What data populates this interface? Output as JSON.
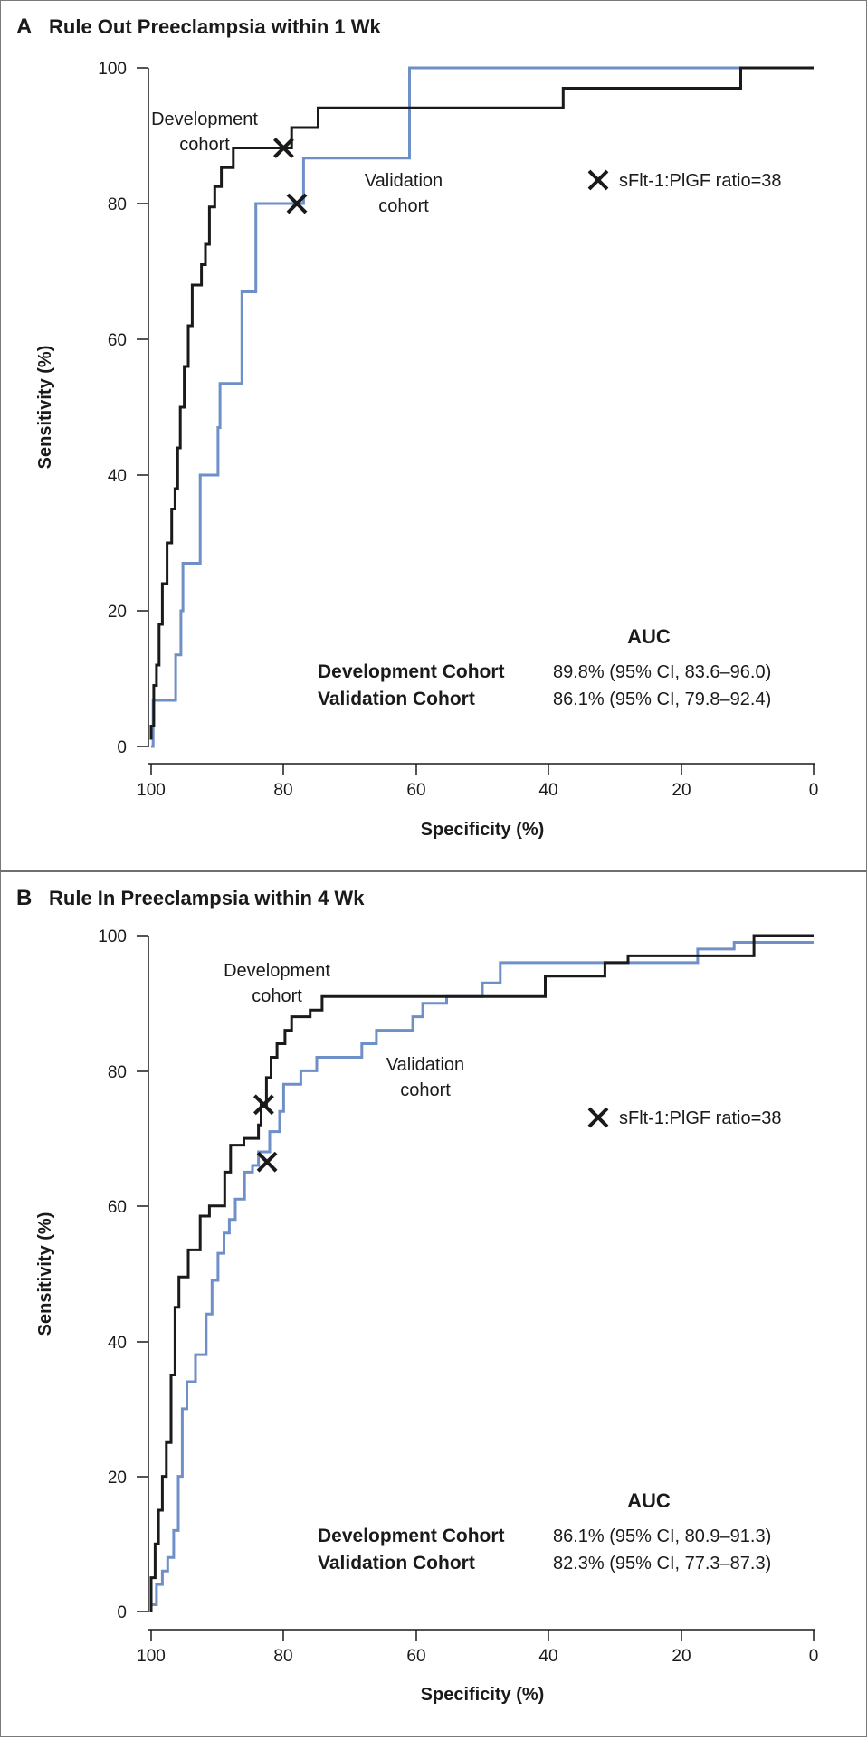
{
  "chart_data": [
    {
      "type": "line",
      "panel_letter": "A",
      "title": "Rule Out Preeclampsia within 1 Wk",
      "xlabel": "Specificity (%)",
      "ylabel": "Sensitivity (%)",
      "xlim": [
        100,
        0
      ],
      "ylim": [
        0,
        100
      ],
      "xticks": [
        100,
        80,
        60,
        40,
        20,
        0
      ],
      "yticks": [
        0,
        20,
        40,
        60,
        80,
        100
      ],
      "annotations": {
        "development": [
          "Development",
          "cohort"
        ],
        "validation": [
          "Validation",
          "cohort"
        ]
      },
      "legend_label": "sFlt-1:PlGF ratio=38",
      "auc": {
        "header": "AUC",
        "rows": [
          {
            "name": "Development Cohort",
            "value": "89.8% (95% CI, 83.6–96.0)"
          },
          {
            "name": "Validation Cohort",
            "value": "86.1% (95% CI, 79.8–92.4)"
          }
        ]
      },
      "markers": [
        {
          "series": "Development cohort",
          "specificity": 80,
          "sensitivity": 88.2
        },
        {
          "series": "Validation cohort",
          "specificity": 78,
          "sensitivity": 80
        }
      ],
      "series": [
        {
          "name": "Development cohort",
          "color": "#1a1a1a",
          "points": [
            [
              100,
              1
            ],
            [
              100,
              3
            ],
            [
              99.6,
              3
            ],
            [
              99.6,
              9
            ],
            [
              99.2,
              9
            ],
            [
              99.2,
              12
            ],
            [
              98.8,
              12
            ],
            [
              98.8,
              18
            ],
            [
              98.3,
              18
            ],
            [
              98.3,
              24
            ],
            [
              97.6,
              24
            ],
            [
              97.6,
              30
            ],
            [
              96.9,
              30
            ],
            [
              96.9,
              35
            ],
            [
              96.4,
              35
            ],
            [
              96.4,
              38
            ],
            [
              96,
              38
            ],
            [
              96,
              44
            ],
            [
              95.6,
              44
            ],
            [
              95.6,
              50
            ],
            [
              95,
              50
            ],
            [
              95,
              56
            ],
            [
              94.4,
              56
            ],
            [
              94.4,
              62
            ],
            [
              93.8,
              62
            ],
            [
              93.8,
              68
            ],
            [
              92.4,
              68
            ],
            [
              92.4,
              71
            ],
            [
              91.8,
              71
            ],
            [
              91.8,
              74
            ],
            [
              91.2,
              74
            ],
            [
              91.2,
              79.5
            ],
            [
              90.4,
              79.5
            ],
            [
              90.4,
              82.5
            ],
            [
              89.4,
              82.5
            ],
            [
              89.4,
              85.3
            ],
            [
              87.6,
              85.3
            ],
            [
              87.6,
              88.2
            ],
            [
              80,
              88.2
            ],
            [
              80,
              88.2
            ],
            [
              78.8,
              88.2
            ],
            [
              78.8,
              91.2
            ],
            [
              74.8,
              91.2
            ],
            [
              74.8,
              94.1
            ],
            [
              37.8,
              94.1
            ],
            [
              37.8,
              97
            ],
            [
              11,
              97
            ],
            [
              11,
              100
            ],
            [
              0,
              100
            ]
          ]
        },
        {
          "name": "Validation cohort",
          "color": "#6f8fc7",
          "points": [
            [
              100,
              0
            ],
            [
              100,
              0
            ],
            [
              99.7,
              0
            ],
            [
              99.7,
              6.8
            ],
            [
              96.3,
              6.8
            ],
            [
              96.3,
              13.5
            ],
            [
              95.5,
              13.5
            ],
            [
              95.5,
              20
            ],
            [
              95.2,
              20
            ],
            [
              95.2,
              27
            ],
            [
              92.6,
              27
            ],
            [
              92.6,
              40
            ],
            [
              89.9,
              40
            ],
            [
              89.9,
              47
            ],
            [
              89.6,
              47
            ],
            [
              89.6,
              53.5
            ],
            [
              86.3,
              53.5
            ],
            [
              86.3,
              67
            ],
            [
              84.2,
              67
            ],
            [
              84.2,
              80
            ],
            [
              77,
              80
            ],
            [
              77,
              86.7
            ],
            [
              61,
              86.7
            ],
            [
              61,
              100
            ],
            [
              0,
              100
            ]
          ]
        }
      ]
    },
    {
      "type": "line",
      "panel_letter": "B",
      "title": "Rule In Preeclampsia within 4 Wk",
      "xlabel": "Specificity (%)",
      "ylabel": "Sensitivity (%)",
      "xlim": [
        100,
        0
      ],
      "ylim": [
        0,
        100
      ],
      "xticks": [
        100,
        80,
        60,
        40,
        20,
        0
      ],
      "yticks": [
        0,
        20,
        40,
        60,
        80,
        100
      ],
      "annotations": {
        "development": [
          "Development",
          "cohort"
        ],
        "validation": [
          "Validation",
          "cohort"
        ]
      },
      "legend_label": "sFlt-1:PlGF ratio=38",
      "auc": {
        "header": "AUC",
        "rows": [
          {
            "name": "Development Cohort",
            "value": "86.1% (95% CI, 80.9–91.3)"
          },
          {
            "name": "Validation Cohort",
            "value": "82.3% (95% CI, 77.3–87.3)"
          }
        ]
      },
      "markers": [
        {
          "series": "Development cohort",
          "specificity": 83,
          "sensitivity": 75
        },
        {
          "series": "Validation cohort",
          "specificity": 82.5,
          "sensitivity": 66.5
        }
      ],
      "series": [
        {
          "name": "Development cohort",
          "color": "#1a1a1a",
          "points": [
            [
              100,
              0
            ],
            [
              100,
              5
            ],
            [
              99.4,
              5
            ],
            [
              99.4,
              10
            ],
            [
              98.9,
              10
            ],
            [
              98.9,
              15
            ],
            [
              98.3,
              15
            ],
            [
              98.3,
              20
            ],
            [
              97.7,
              20
            ],
            [
              97.7,
              25
            ],
            [
              97,
              25
            ],
            [
              97,
              35
            ],
            [
              96.4,
              35
            ],
            [
              96.4,
              45
            ],
            [
              95.8,
              45
            ],
            [
              95.8,
              49.5
            ],
            [
              94.4,
              49.5
            ],
            [
              94.4,
              53.5
            ],
            [
              92.6,
              53.5
            ],
            [
              92.6,
              58.5
            ],
            [
              91.2,
              58.5
            ],
            [
              91.2,
              60
            ],
            [
              88.9,
              60
            ],
            [
              88.9,
              65
            ],
            [
              88,
              65
            ],
            [
              88,
              69
            ],
            [
              86,
              69
            ],
            [
              86,
              70
            ],
            [
              83.8,
              70
            ],
            [
              83.8,
              72
            ],
            [
              83.4,
              72
            ],
            [
              83.4,
              75
            ],
            [
              82.6,
              75
            ],
            [
              82.6,
              79
            ],
            [
              81.9,
              79
            ],
            [
              81.9,
              82
            ],
            [
              81,
              82
            ],
            [
              81,
              84
            ],
            [
              79.8,
              84
            ],
            [
              79.8,
              86
            ],
            [
              78.8,
              86
            ],
            [
              78.8,
              88
            ],
            [
              76,
              88
            ],
            [
              76,
              89
            ],
            [
              74.2,
              89
            ],
            [
              74.2,
              91
            ],
            [
              40.5,
              91
            ],
            [
              40.5,
              94
            ],
            [
              31.5,
              94
            ],
            [
              31.5,
              96
            ],
            [
              28,
              96
            ],
            [
              28,
              97
            ],
            [
              9,
              97
            ],
            [
              9,
              100
            ],
            [
              0,
              100
            ]
          ]
        },
        {
          "name": "Validation cohort",
          "color": "#6f8fc7",
          "points": [
            [
              100,
              0
            ],
            [
              100,
              1
            ],
            [
              99.2,
              1
            ],
            [
              99.2,
              4
            ],
            [
              98.3,
              4
            ],
            [
              98.3,
              6
            ],
            [
              97.5,
              6
            ],
            [
              97.5,
              8
            ],
            [
              96.6,
              8
            ],
            [
              96.6,
              12
            ],
            [
              95.9,
              12
            ],
            [
              95.9,
              20
            ],
            [
              95.3,
              20
            ],
            [
              95.3,
              30
            ],
            [
              94.6,
              30
            ],
            [
              94.6,
              34
            ],
            [
              93.3,
              34
            ],
            [
              93.3,
              38
            ],
            [
              91.7,
              38
            ],
            [
              91.7,
              44
            ],
            [
              90.8,
              44
            ],
            [
              90.8,
              49
            ],
            [
              89.9,
              49
            ],
            [
              89.9,
              53
            ],
            [
              89,
              53
            ],
            [
              89,
              56
            ],
            [
              88.2,
              56
            ],
            [
              88.2,
              58
            ],
            [
              87.3,
              58
            ],
            [
              87.3,
              61
            ],
            [
              85.9,
              61
            ],
            [
              85.9,
              65
            ],
            [
              84.7,
              65
            ],
            [
              84.7,
              66
            ],
            [
              83.8,
              66
            ],
            [
              83.8,
              68
            ],
            [
              82.1,
              68
            ],
            [
              82.1,
              71
            ],
            [
              80.6,
              71
            ],
            [
              80.6,
              74
            ],
            [
              80,
              74
            ],
            [
              80,
              78
            ],
            [
              77.4,
              78
            ],
            [
              77.4,
              80
            ],
            [
              75,
              80
            ],
            [
              75,
              82
            ],
            [
              68.2,
              82
            ],
            [
              68.2,
              84
            ],
            [
              66,
              84
            ],
            [
              66,
              86
            ],
            [
              60.5,
              86
            ],
            [
              60.5,
              88
            ],
            [
              59,
              88
            ],
            [
              59,
              90
            ],
            [
              55.4,
              90
            ],
            [
              55.4,
              91
            ],
            [
              50,
              91
            ],
            [
              50,
              93
            ],
            [
              47.3,
              93
            ],
            [
              47.3,
              96
            ],
            [
              17.5,
              96
            ],
            [
              17.5,
              98
            ],
            [
              12,
              98
            ],
            [
              12,
              99
            ],
            [
              0,
              99
            ]
          ]
        }
      ]
    }
  ]
}
